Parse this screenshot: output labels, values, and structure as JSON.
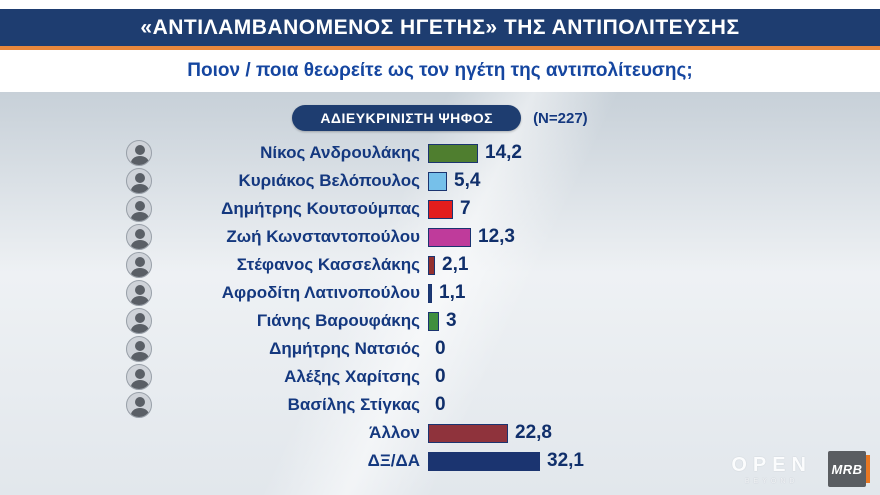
{
  "header": {
    "title": "«ΑΝΤΙΛΑΜΒΑΝΟΜΕΝΟΣ ΗΓΕΤΗΣ» ΤΗΣ ΑΝΤΙΠΟΛΙΤΕΥΣΗΣ",
    "subtitle": "Ποιον / ποια θεωρείτε ως τον ηγέτη της αντιπολίτευσης;"
  },
  "badge": {
    "label": "ΑΔΙΕΥΚΡΙΝΙΣΤΗ ΨΗΦΟΣ",
    "sample": "(N=227)"
  },
  "chart_data": {
    "type": "bar",
    "orientation": "horizontal",
    "title": "ΑΔΙΕΥΚΡΙΝΙΣΤΗ ΨΗΦΟΣ (N=227)",
    "xlim": [
      0,
      35
    ],
    "grid": false,
    "legend": "none",
    "categories": [
      "Νίκος Ανδρουλάκης",
      "Κυριάκος Βελόπουλος",
      "Δημήτρης Κουτσούμπας",
      "Ζωή Κωνσταντοπούλου",
      "Στέφανος Κασσελάκης",
      "Αφροδίτη Λατινοπούλου",
      "Γιάνης Βαρουφάκης",
      "Δημήτρης Νατσιός",
      "Αλέξης Χαρίτσης",
      "Βασίλης Στίγκας",
      "Άλλον",
      "ΔΞ/ΔΑ"
    ],
    "values": [
      14.2,
      5.4,
      7,
      12.3,
      2.1,
      1.1,
      3,
      0,
      0,
      0,
      22.8,
      32.1
    ],
    "rows": [
      {
        "name": "Νίκος Ανδρουλάκης",
        "value": 14.2,
        "display": "14,2",
        "color": "#4f7e2f",
        "avatar": true
      },
      {
        "name": "Κυριάκος Βελόπουλος",
        "value": 5.4,
        "display": "5,4",
        "color": "#76c0ea",
        "avatar": true
      },
      {
        "name": "Δημήτρης Κουτσούμπας",
        "value": 7,
        "display": "7",
        "color": "#e31d1d",
        "avatar": true
      },
      {
        "name": "Ζωή Κωνσταντοπούλου",
        "value": 12.3,
        "display": "12,3",
        "color": "#bf3b9b",
        "avatar": true
      },
      {
        "name": "Στέφανος Κασσελάκης",
        "value": 2.1,
        "display": "2,1",
        "color": "#93302e",
        "avatar": true
      },
      {
        "name": "Αφροδίτη Λατινοπούλου",
        "value": 1.1,
        "display": "1,1",
        "color": "#1c3a75",
        "avatar": true
      },
      {
        "name": "Γιάνης Βαρουφάκης",
        "value": 3,
        "display": "3",
        "color": "#3f8f3f",
        "avatar": true
      },
      {
        "name": "Δημήτρης Νατσιός",
        "value": 0,
        "display": "0",
        "color": "#1c3a75",
        "avatar": true
      },
      {
        "name": "Αλέξης Χαρίτσης",
        "value": 0,
        "display": "0",
        "color": "#1c3a75",
        "avatar": true
      },
      {
        "name": "Βασίλης Στίγκας",
        "value": 0,
        "display": "0",
        "color": "#1c3a75",
        "avatar": true
      },
      {
        "name": "Άλλον",
        "value": 22.8,
        "display": "22,8",
        "color": "#8f333c",
        "avatar": false
      },
      {
        "name": "ΔΞ/ΔΑ",
        "value": 32.1,
        "display": "32,1",
        "color": "#1b3470",
        "avatar": false
      }
    ]
  },
  "footer": {
    "open": "OPEN",
    "beyond": "BEYOND",
    "mrb": "MRB"
  },
  "colors": {
    "header_navy": "#1e3d70",
    "accent_orange": "#e8873c",
    "text_navy": "#14387f"
  }
}
